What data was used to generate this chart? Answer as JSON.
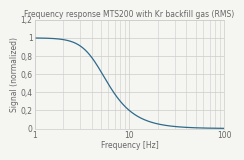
{
  "title": "Frequency response MTS200 with Kr backfill gas (RMS)",
  "xlabel": "Frequency [Hz]",
  "ylabel": "Signal (normalized)",
  "xlim": [
    1,
    100
  ],
  "ylim": [
    0,
    1.2
  ],
  "yticks": [
    0,
    0.2,
    0.4,
    0.6,
    0.8,
    1.0,
    1.2
  ],
  "ytick_labels": [
    "0",
    "0,2",
    "0,4",
    "0,6",
    "0,8",
    "1",
    "1,2"
  ],
  "xticks": [
    1,
    10,
    100
  ],
  "line_color": "#2e6b8a",
  "line_width": 0.9,
  "background_color": "#f5f5f2",
  "grid_color": "#cccccc",
  "title_fontsize": 5.5,
  "label_fontsize": 5.5,
  "tick_fontsize": 5.5,
  "fc": 4.5,
  "filter_order": 2
}
